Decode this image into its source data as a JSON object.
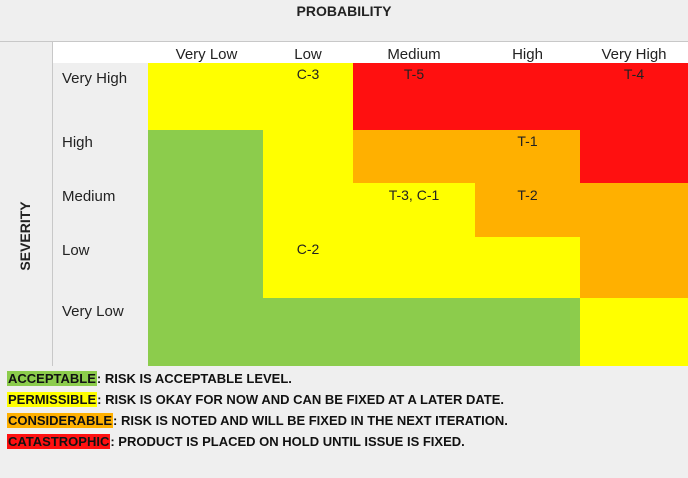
{
  "probability_label": "PROBABILITY",
  "severity_label": "SEVERITY",
  "columns": [
    "Very Low",
    "Low",
    "Medium",
    "High",
    "Very High"
  ],
  "rows": [
    "Very High",
    "High",
    "Medium",
    "Low",
    "Very Low"
  ],
  "colors": {
    "acceptable": "#8ccc4c",
    "permissible": "#ffff00",
    "considerable": "#ffb000",
    "catastrophic": "#ff1010"
  },
  "cells": [
    {
      "id": "C-3",
      "label": "C-3"
    },
    {
      "id": "T-5",
      "label": "T-5"
    },
    {
      "id": "T-4",
      "label": "T-4"
    },
    {
      "id": "T-1",
      "label": "T-1"
    },
    {
      "id": "T-3-C-1",
      "label": "T-3, C-1"
    },
    {
      "id": "T-2",
      "label": "T-2"
    },
    {
      "id": "C-2",
      "label": "C-2"
    }
  ],
  "legend": [
    {
      "key": "ACCEPTABLE",
      "text": ": RISK IS ACCEPTABLE LEVEL."
    },
    {
      "key": "PERMISSIBLE",
      "text": ": RISK IS OKAY FOR NOW AND CAN BE FIXED AT A LATER DATE."
    },
    {
      "key": "CONSIDERABLE",
      "text": ": RISK IS NOTED AND WILL BE FIXED IN THE NEXT ITERATION."
    },
    {
      "key": "CATASTROPHIC",
      "text": ": PRODUCT IS PLACED ON HOLD UNTIL ISSUE IS FIXED."
    }
  ]
}
